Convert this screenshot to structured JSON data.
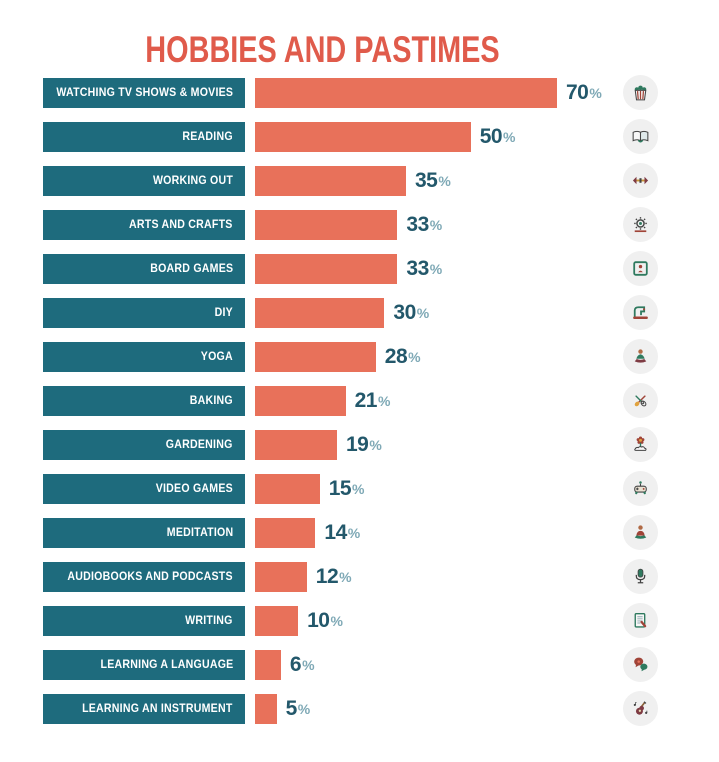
{
  "chart_data": {
    "type": "bar",
    "orientation": "horizontal",
    "title": "HOBBIES AND PASTIMES",
    "categories": [
      "WATCHING TV SHOWS & MOVIES",
      "READING",
      "WORKING OUT",
      "ARTS AND CRAFTS",
      "BOARD GAMES",
      "DIY",
      "YOGA",
      "BAKING",
      "GARDENING",
      "VIDEO GAMES",
      "MEDITATION",
      "AUDIOBOOKS AND PODCASTS",
      "WRITING",
      "LEARNING A LANGUAGE",
      "LEARNING AN INSTRUMENT"
    ],
    "values": [
      70,
      50,
      35,
      33,
      33,
      30,
      28,
      21,
      19,
      15,
      14,
      12,
      10,
      6,
      5
    ],
    "unit": "%",
    "xlim": [
      0,
      70
    ],
    "grid": false,
    "legend": false,
    "icons": [
      "popcorn-icon",
      "open-book-icon",
      "dumbbell-icon",
      "pottery-wheel-icon",
      "board-game-icon",
      "sewing-machine-icon",
      "yoga-pose-icon",
      "baking-utensils-icon",
      "flower-icon",
      "game-controller-icon",
      "meditation-icon",
      "microphone-icon",
      "notepad-pen-icon",
      "speech-bubbles-icon",
      "guitar-icon"
    ]
  },
  "colors": {
    "title": "#e05b4b",
    "bar": "#e8715a",
    "label_box": "#1e6b7d",
    "value_number": "#23586b",
    "percent_sign": "#7fa9b6",
    "icon_circle_bg": "#f0f0f0",
    "background": "#ffffff"
  }
}
